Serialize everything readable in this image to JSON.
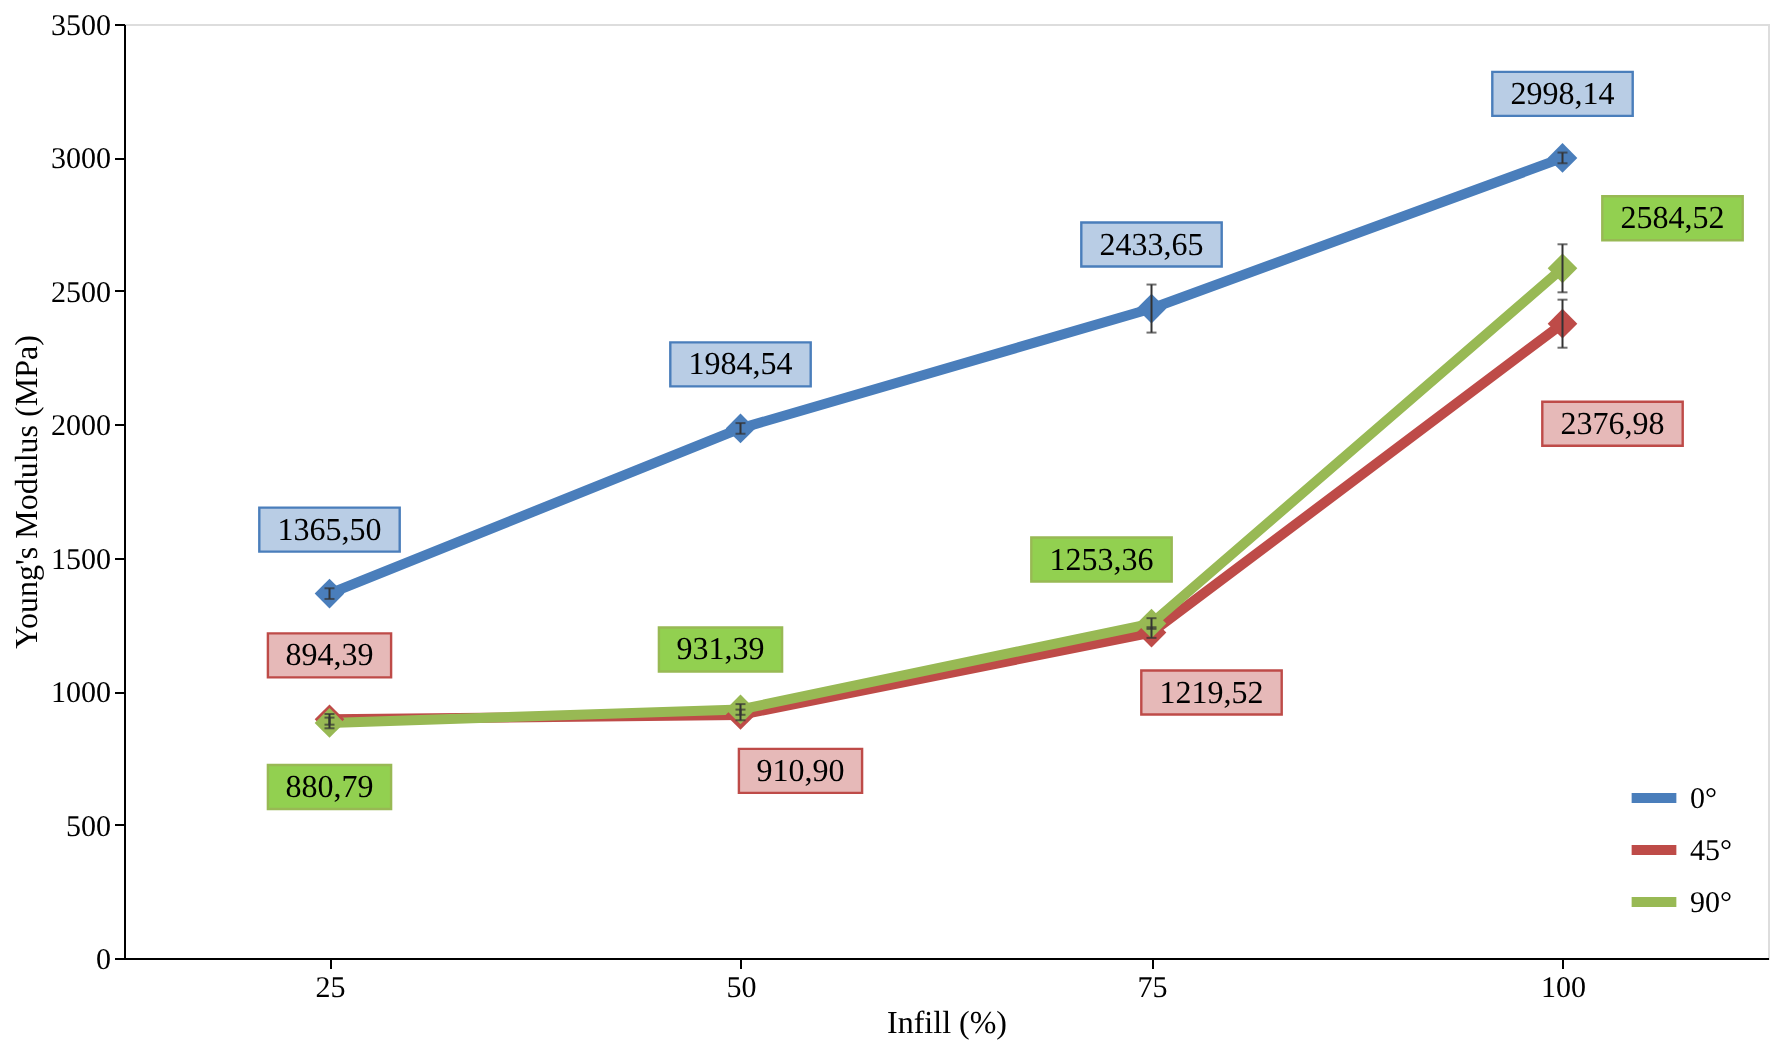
{
  "chart_data": {
    "type": "line",
    "xlabel": "Infill (%)",
    "ylabel": "Young's Modulus (MPa)",
    "categories": [
      "25",
      "50",
      "75",
      "100"
    ],
    "ylim": [
      0,
      3500
    ],
    "yticks": [
      0,
      500,
      1000,
      1500,
      2000,
      2500,
      3000,
      3500
    ],
    "grid": false,
    "legend": "bottom right",
    "marker": "diamond",
    "line_style": "solid",
    "series": [
      {
        "name": "0°",
        "color": "#4a7ebb",
        "values": [
          1365.5,
          1984.54,
          2433.65,
          2998.14
        ],
        "errors": [
          20,
          20,
          90,
          20
        ],
        "value_labels": [
          "1365,50",
          "1984,54",
          "2433,65",
          "2998,14"
        ]
      },
      {
        "name": "45°",
        "color": "#be4b48",
        "values": [
          894.39,
          910.9,
          1219.52,
          2376.98
        ],
        "errors": [
          20,
          20,
          20,
          90
        ],
        "value_labels": [
          "894,39",
          "910,90",
          "1219,52",
          "2376,98"
        ]
      },
      {
        "name": "90°",
        "color": "#98b954",
        "values": [
          880.79,
          931.39,
          1253.36,
          2584.52
        ],
        "errors": [
          20,
          20,
          20,
          90
        ],
        "value_labels": [
          "880,79",
          "931,39",
          "1253,36",
          "2584,52"
        ]
      }
    ]
  }
}
